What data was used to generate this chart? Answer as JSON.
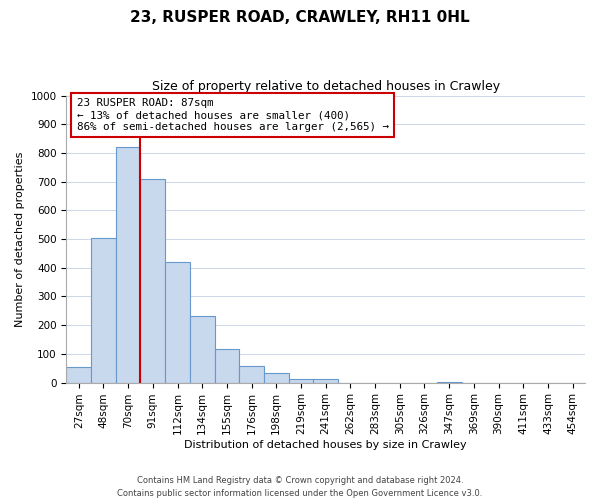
{
  "title": "23, RUSPER ROAD, CRAWLEY, RH11 0HL",
  "subtitle": "Size of property relative to detached houses in Crawley",
  "xlabel": "Distribution of detached houses by size in Crawley",
  "ylabel": "Number of detached properties",
  "bar_labels": [
    "27sqm",
    "48sqm",
    "70sqm",
    "91sqm",
    "112sqm",
    "134sqm",
    "155sqm",
    "176sqm",
    "198sqm",
    "219sqm",
    "241sqm",
    "262sqm",
    "283sqm",
    "305sqm",
    "326sqm",
    "347sqm",
    "369sqm",
    "390sqm",
    "411sqm",
    "433sqm",
    "454sqm"
  ],
  "bar_heights": [
    55,
    505,
    820,
    710,
    420,
    232,
    118,
    57,
    35,
    12,
    12,
    0,
    0,
    0,
    0,
    2,
    0,
    0,
    0,
    0,
    0
  ],
  "bar_color": "#c8d8ed",
  "bar_edge_color": "#6699cc",
  "property_line_color": "#cc0000",
  "property_line_bar_index": 3,
  "annotation_line1": "23 RUSPER ROAD: 87sqm",
  "annotation_line2": "← 13% of detached houses are smaller (400)",
  "annotation_line3": "86% of semi-detached houses are larger (2,565) →",
  "annotation_box_color": "#ffffff",
  "annotation_box_edge": "#cc0000",
  "ylim": [
    0,
    1000
  ],
  "yticks": [
    0,
    100,
    200,
    300,
    400,
    500,
    600,
    700,
    800,
    900,
    1000
  ],
  "footer_line1": "Contains HM Land Registry data © Crown copyright and database right 2024.",
  "footer_line2": "Contains public sector information licensed under the Open Government Licence v3.0.",
  "background_color": "#ffffff",
  "grid_color": "#ccd8e8",
  "title_fontsize": 11,
  "subtitle_fontsize": 9,
  "axis_label_fontsize": 8,
  "tick_fontsize": 7.5,
  "footer_fontsize": 6
}
